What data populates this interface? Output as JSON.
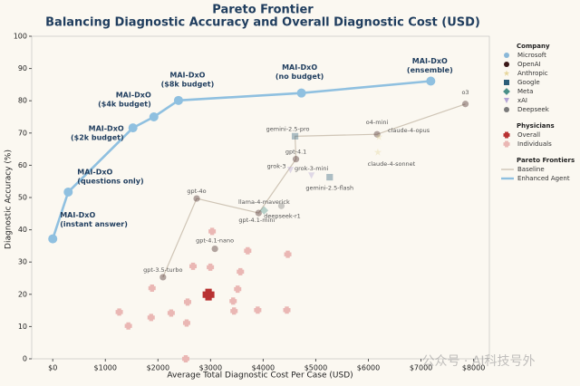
{
  "chart_data": {
    "type": "scatter",
    "title": "Pareto Frontier",
    "subtitle": "Balancing Diagnostic Accuracy and Overall Diagnostic Cost (USD)",
    "x_label": "Average Total Diagnostic Cost Per Case (USD)",
    "y_label": "Diagnostic Accuracy (%)",
    "xlim": [
      -400,
      8300
    ],
    "ylim": [
      0,
      100
    ],
    "xticks": [
      {
        "value": 0,
        "label": "$0"
      },
      {
        "value": 1000,
        "label": "$1000"
      },
      {
        "value": 2000,
        "label": "$2000"
      },
      {
        "value": 3000,
        "label": "$3000"
      },
      {
        "value": 4000,
        "label": "$4000"
      },
      {
        "value": 5000,
        "label": "$5000"
      },
      {
        "value": 6000,
        "label": "$6000"
      },
      {
        "value": 7000,
        "label": "$7000"
      },
      {
        "value": 8000,
        "label": "$8000"
      }
    ],
    "yticks": [
      0,
      10,
      20,
      30,
      40,
      50,
      60,
      70,
      80,
      90,
      100
    ],
    "companies_title": "Company",
    "companies": [
      {
        "name": "Microsoft",
        "color": "#8ab8d8",
        "marker": "circle"
      },
      {
        "name": "OpenAI",
        "color": "#3a1818",
        "marker": "circle"
      },
      {
        "name": "Anthropic",
        "color": "#e6d59a",
        "marker": "star"
      },
      {
        "name": "Google",
        "color": "#2c5d78",
        "marker": "square"
      },
      {
        "name": "Meta",
        "color": "#4a9088",
        "marker": "diamond"
      },
      {
        "name": "xAI",
        "color": "#b4a4d6",
        "marker": "triangle"
      },
      {
        "name": "Deepseek",
        "color": "#7a7a7a",
        "marker": "circle"
      }
    ],
    "models": [
      {
        "name": "gpt-3.5-turbo",
        "company": 1,
        "x": 2095,
        "y": 25.3
      },
      {
        "name": "gpt-4o",
        "company": 1,
        "x": 2736,
        "y": 49.7
      },
      {
        "name": "gpt-4.1-nano",
        "company": 1,
        "x": 3082,
        "y": 34.1
      },
      {
        "name": "gpt-4.1-mini",
        "company": 1,
        "x": 3913,
        "y": 45.2
      },
      {
        "name": "llama-4-maverick",
        "company": 4,
        "x": 4017,
        "y": 46.0
      },
      {
        "name": "deepseek-r1",
        "company": 6,
        "x": 4346,
        "y": 47.4
      },
      {
        "name": "grok-3",
        "company": 5,
        "x": 4519,
        "y": 58.5
      },
      {
        "name": "gpt-4.1",
        "company": 1,
        "x": 4623,
        "y": 61.9
      },
      {
        "name": "grok-3-mini",
        "company": 5,
        "x": 4918,
        "y": 56.8
      },
      {
        "name": "gemini-2.5-pro",
        "company": 3,
        "x": 4606,
        "y": 69.0
      },
      {
        "name": "gemini-2.5-flash",
        "company": 3,
        "x": 5264,
        "y": 56.3
      },
      {
        "name": "o4-mini",
        "company": 1,
        "x": 6165,
        "y": 69.6
      },
      {
        "name": "claude-4-opus",
        "company": 2,
        "x": 6200,
        "y": 68.8
      },
      {
        "name": "claude-4-sonnet",
        "company": 2,
        "x": 6180,
        "y": 64.0
      },
      {
        "name": "o3",
        "company": 1,
        "x": 7844,
        "y": 79.0
      }
    ],
    "physicians_title": "Physicians",
    "physicians": [
      {
        "name": "Overall",
        "color": "#b83232",
        "x": [
          2961
        ],
        "values": [
          19.9
        ]
      },
      {
        "name": "Individuals",
        "color": "#eab7b4",
        "x": [
          1264,
          1437,
          1887,
          1870,
          2251,
          2545,
          2667,
          2563,
          3030,
          2996,
          3429,
          3446,
          3515,
          3567,
          3706,
          4468,
          4450,
          3896,
          2528
        ],
        "values": [
          14.5,
          10.2,
          21.9,
          12.8,
          14.2,
          11.1,
          28.7,
          17.6,
          39.5,
          28.4,
          17.9,
          14.8,
          21.6,
          27.0,
          33.5,
          32.4,
          15.1,
          15.1,
          0
        ]
      }
    ],
    "frontiers_title": "Pareto Frontiers",
    "series": [
      {
        "name": "Baseline",
        "color": "#cfc5b6",
        "x": [
          2095,
          2736,
          3913,
          4623,
          4606,
          6165,
          7844
        ],
        "values": [
          25.3,
          49.7,
          45.2,
          61.9,
          69.0,
          69.6,
          79.0
        ]
      },
      {
        "name": "Enhanced Agent",
        "color": "#8fc0e0",
        "x": [
          0,
          294,
          1524,
          1922,
          2390,
          4727,
          7186
        ],
        "values": [
          37.2,
          51.7,
          71.6,
          75.0,
          80.1,
          82.4,
          86.1
        ],
        "point_labels": [
          [
            "MAI-DxO",
            "(instant answer)"
          ],
          [
            "MAI-DxO",
            "(questions only)"
          ],
          [
            "MAI-DxO",
            "($2k budget)"
          ],
          [
            "MAI-DxO",
            "($4k budget)"
          ],
          [
            "MAI-DxO",
            "($8k budget)"
          ],
          [
            "MAI-DxO",
            "(no budget)"
          ],
          [
            "MAI-DxO",
            "(ensemble)"
          ]
        ]
      }
    ],
    "watermark": "公众号 · AI科技号外"
  }
}
